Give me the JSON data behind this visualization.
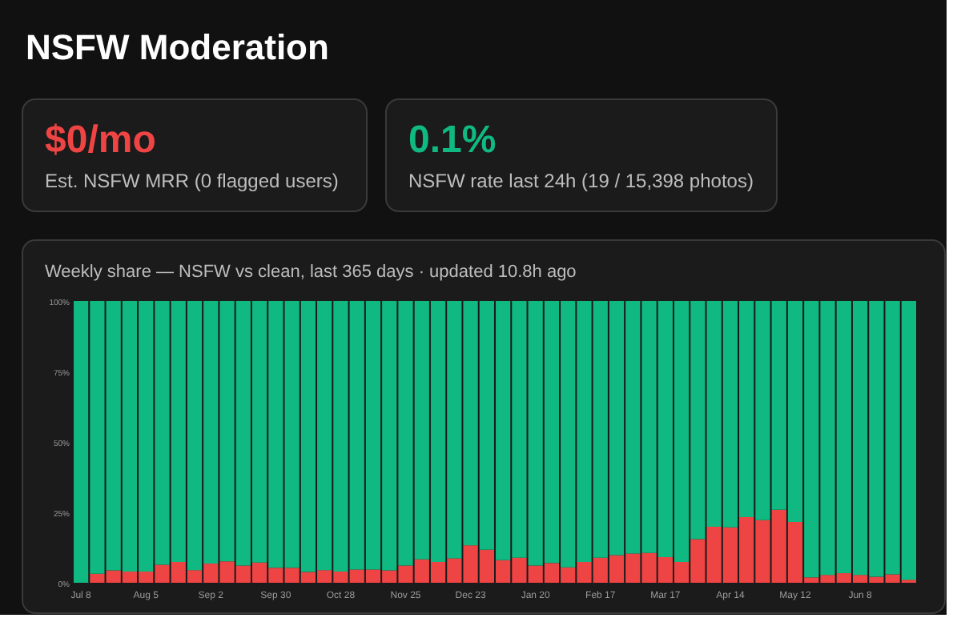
{
  "chart_data": {
    "type": "bar",
    "title": "NSFW Moderation",
    "subtitle": "Weekly share — NSFW vs clean, last 365 days · updated 10.8h ago",
    "stacked": true,
    "annotations": [
      "$0/mo",
      "Est. NSFW MRR (0 flagged users)",
      "0.1%",
      "NSFW rate last 24h (19 / 15,398 photos)"
    ],
    "categories": [
      "Jul 8",
      null,
      null,
      null,
      "Aug 5",
      null,
      null,
      null,
      "Sep 2",
      null,
      null,
      null,
      "Sep 30",
      null,
      null,
      null,
      "Oct 28",
      null,
      null,
      null,
      "Nov 25",
      null,
      null,
      null,
      "Dec 23",
      null,
      null,
      null,
      "Jan 20",
      null,
      null,
      null,
      "Feb 17",
      null,
      null,
      null,
      "Mar 17",
      null,
      null,
      null,
      "Apr 14",
      null,
      null,
      null,
      "May 12",
      null,
      null,
      null,
      "Jun 8",
      null,
      null,
      null
    ],
    "ylim": [
      0,
      100
    ],
    "yticks": [
      {
        "value": 0,
        "label": "0%"
      },
      {
        "value": 25,
        "label": "25%"
      },
      {
        "value": 50,
        "label": "50%"
      },
      {
        "value": 75,
        "label": "75%"
      },
      {
        "value": 100,
        "label": "100%"
      }
    ],
    "series": [
      {
        "color": "#ef4444",
        "values": [
          0,
          3.2,
          4.4,
          4.0,
          4.0,
          6.4,
          7.4,
          4.5,
          6.8,
          7.6,
          6.1,
          7.2,
          5.3,
          5.3,
          3.8,
          4.5,
          4.0,
          4.7,
          4.7,
          4.4,
          6.1,
          8.3,
          7.4,
          8.7,
          13.3,
          11.7,
          8.0,
          8.9,
          6.1,
          7.0,
          5.5,
          7.4,
          8.9,
          9.8,
          10.4,
          10.6,
          9.1,
          7.4,
          15.5,
          19.9,
          19.7,
          23.3,
          22.2,
          25.9,
          21.6,
          1.9,
          2.8,
          3.4,
          2.8,
          2.1,
          3.0,
          1.1
        ]
      },
      {
        "color": "#10b981",
        "values": [
          100,
          96.8,
          95.6,
          96,
          96,
          93.6,
          92.6,
          95.5,
          93.2,
          92.4,
          93.9,
          92.8,
          94.7,
          94.7,
          96.2,
          95.5,
          96,
          95.3,
          95.3,
          95.6,
          93.9,
          91.7,
          92.6,
          91.3,
          86.7,
          88.3,
          92,
          91.1,
          93.9,
          93,
          94.5,
          92.6,
          91.1,
          90.2,
          89.6,
          89.4,
          90.9,
          92.6,
          84.5,
          80.1,
          80.3,
          76.7,
          77.8,
          74.1,
          78.4,
          98.1,
          97.2,
          96.6,
          97.2,
          97.9,
          97,
          98.9
        ]
      }
    ]
  }
}
